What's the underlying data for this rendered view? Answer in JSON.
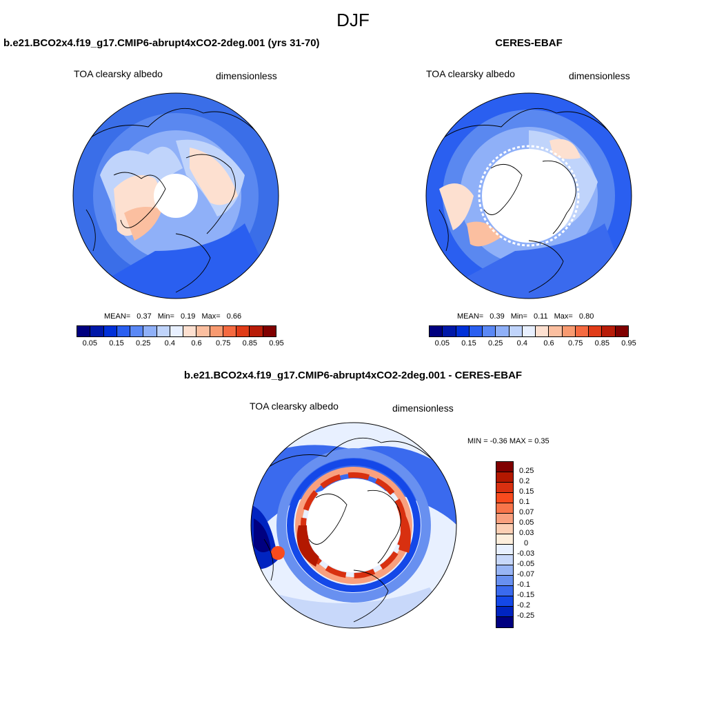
{
  "season": "DJF",
  "panel_model": {
    "title": "b.e21.BCO2x4.f19_g17.CMIP6-abrupt4xCO2-2deg.001 (yrs 31-70)",
    "variable": "TOA clearsky albedo",
    "units": "dimensionless",
    "stats": {
      "mean_label": "MEAN=",
      "mean": "0.37",
      "min_label": "Min=",
      "min": "0.19",
      "max_label": "Max=",
      "max": "0.66"
    }
  },
  "panel_obs": {
    "title": "CERES-EBAF",
    "variable": "TOA clearsky albedo",
    "units": "dimensionless",
    "stats": {
      "mean_label": "MEAN=",
      "mean": "0.39",
      "min_label": "Min=",
      "min": "0.11",
      "max_label": "Max=",
      "max": "0.80"
    }
  },
  "panel_diff": {
    "title": "b.e21.BCO2x4.f19_g17.CMIP6-abrupt4xCO2-2deg.001 - CERES-EBAF",
    "variable": "TOA clearsky albedo",
    "units": "dimensionless",
    "minmax": "MIN =  -0.36 MAX =   0.35"
  },
  "colorbar_abs": {
    "colors": [
      "#00007f",
      "#0018a8",
      "#0030d8",
      "#2a5ff0",
      "#5a88f5",
      "#8fb0f8",
      "#c0d4fb",
      "#e8f0ff",
      "#fde0d0",
      "#fbbfa0",
      "#f89a70",
      "#f56a40",
      "#e03c18",
      "#b81c08",
      "#800000"
    ],
    "labels": [
      "0.05",
      "0.15",
      "0.25",
      "0.4",
      "0.6",
      "0.75",
      "0.85",
      "0.95"
    ]
  },
  "colorbar_diff": {
    "colors": [
      "#800000",
      "#b31800",
      "#d83010",
      "#f84b1e",
      "#f8754a",
      "#f9a07e",
      "#fccfb4",
      "#fdeedc",
      "#e8f0ff",
      "#c8d8fa",
      "#98b5f5",
      "#6890f0",
      "#3a6aee",
      "#1448e8",
      "#0024c0",
      "#000080"
    ],
    "labels": [
      "0.25",
      "0.2",
      "0.15",
      "0.1",
      "0.07",
      "0.05",
      "0.03",
      "0",
      "-0.03",
      "-0.05",
      "-0.07",
      "-0.1",
      "-0.15",
      "-0.2",
      "-0.25"
    ]
  }
}
